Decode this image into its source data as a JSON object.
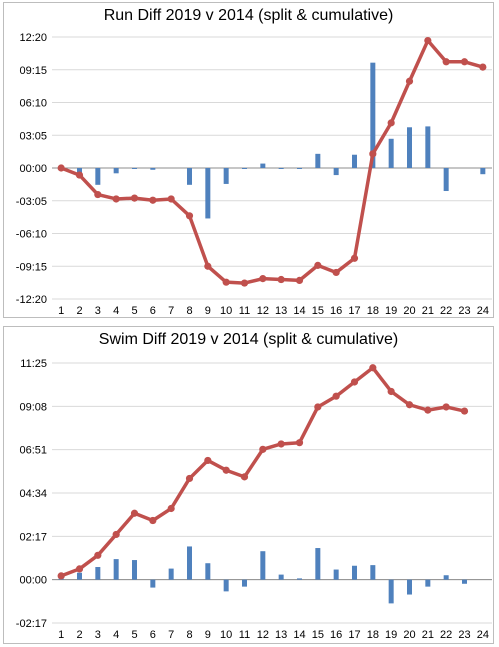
{
  "chart_data": [
    {
      "type": "bar+line",
      "title": "Run Diff 2019 v 2014 (split & cumulative)",
      "categories": [
        "1",
        "2",
        "3",
        "4",
        "5",
        "6",
        "7",
        "8",
        "9",
        "10",
        "11",
        "12",
        "13",
        "14",
        "15",
        "16",
        "17",
        "18",
        "19",
        "20",
        "21",
        "22",
        "23",
        "24"
      ],
      "y_ticks": [
        {
          "label": "12:20",
          "value": 740
        },
        {
          "label": "09:15",
          "value": 555
        },
        {
          "label": "06:10",
          "value": 370
        },
        {
          "label": "03:05",
          "value": 185
        },
        {
          "label": "00:00",
          "value": 0
        },
        {
          "label": "-03:05",
          "value": -185
        },
        {
          "label": "-06:10",
          "value": -370
        },
        {
          "label": "-09:15",
          "value": -555
        },
        {
          "label": "-12:20",
          "value": -740
        }
      ],
      "ylim": [
        -740,
        740
      ],
      "y_unit_note": "seconds",
      "series": [
        {
          "kind": "bar",
          "color": "#4f81bd",
          "values": [
            0,
            -40,
            -95,
            -30,
            -5,
            -10,
            0,
            -95,
            -285,
            -90,
            -5,
            25,
            -5,
            -5,
            80,
            -40,
            75,
            595,
            165,
            230,
            235,
            -130,
            0,
            -35
          ]
        },
        {
          "kind": "line",
          "color": "#c0504d",
          "values": [
            0,
            -40,
            -150,
            -175,
            -170,
            -182,
            -175,
            -270,
            -555,
            -645,
            -650,
            -625,
            -630,
            -635,
            -550,
            -590,
            -510,
            80,
            255,
            490,
            720,
            600,
            600,
            570
          ]
        }
      ]
    },
    {
      "type": "bar+line",
      "title": "Swim Diff 2019 v 2014 (split & cumulative)",
      "categories": [
        "1",
        "2",
        "3",
        "4",
        "5",
        "6",
        "7",
        "8",
        "9",
        "10",
        "11",
        "12",
        "13",
        "14",
        "15",
        "16",
        "17",
        "18",
        "19",
        "20",
        "21",
        "22",
        "23",
        "24"
      ],
      "y_ticks": [
        {
          "label": "11:25",
          "value": 685
        },
        {
          "label": "09:08",
          "value": 548
        },
        {
          "label": "06:51",
          "value": 411
        },
        {
          "label": "04:34",
          "value": 274
        },
        {
          "label": "02:17",
          "value": 137
        },
        {
          "label": "00:00",
          "value": 0
        },
        {
          "label": "-02:17",
          "value": -137
        }
      ],
      "ylim": [
        -137,
        685
      ],
      "y_unit_note": "seconds",
      "series": [
        {
          "kind": "bar",
          "color": "#4f81bd",
          "values": [
            10,
            22,
            40,
            65,
            62,
            -25,
            35,
            105,
            52,
            -37,
            -22,
            90,
            16,
            4,
            100,
            32,
            44,
            46,
            -75,
            -47,
            -22,
            14,
            -13,
            null
          ]
        },
        {
          "kind": "line",
          "color": "#c0504d",
          "values": [
            12,
            34,
            77,
            143,
            210,
            187,
            225,
            320,
            377,
            346,
            325,
            412,
            429,
            433,
            546,
            580,
            625,
            670,
            595,
            553,
            536,
            546,
            533,
            null
          ]
        }
      ]
    }
  ]
}
